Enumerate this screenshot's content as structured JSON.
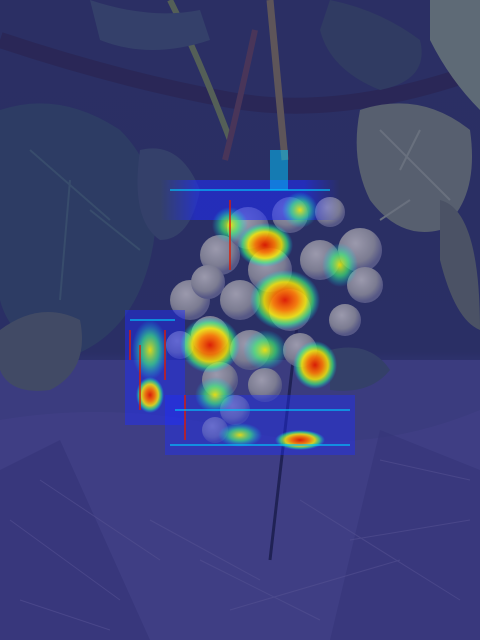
{
  "image": {
    "subject": "grape-cluster-heatmap-overlay",
    "overlay_tint": "#2a2f8a",
    "heatmap_colors": [
      "#1f2cff",
      "#00c8ff",
      "#3cff7a",
      "#fff200",
      "#ff7a00",
      "#e01a00"
    ]
  }
}
